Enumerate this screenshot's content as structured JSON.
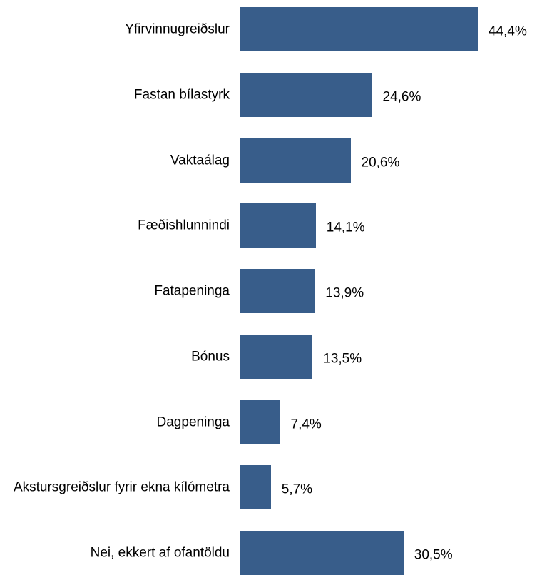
{
  "chart_data": {
    "type": "bar",
    "orientation": "horizontal",
    "categories": [
      "Yfirvinnugreiðslur",
      "Fastan bílastyrk",
      "Vaktaálag",
      "Fæðishlunnindi",
      "Fatapeninga",
      "Bónus",
      "Dagpeninga",
      "Akstursgreiðslur fyrir ekna kílómetra",
      "Nei, ekkert af ofantöldu"
    ],
    "values": [
      44.4,
      24.6,
      20.6,
      14.1,
      13.9,
      13.5,
      7.4,
      5.7,
      30.5
    ],
    "value_labels": [
      "44,4%",
      "24,6%",
      "20,6%",
      "14,1%",
      "13,9%",
      "13,5%",
      "7,4%",
      "5,7%",
      "30,5%"
    ],
    "color": "#385d8a",
    "xlim": [
      0,
      50
    ]
  }
}
